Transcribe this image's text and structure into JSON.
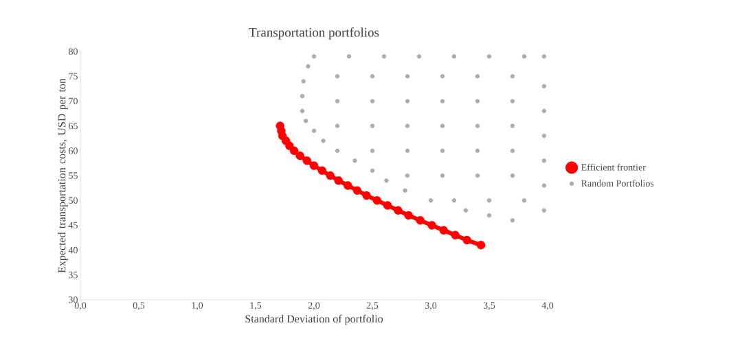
{
  "chart_data": {
    "type": "scatter",
    "title": "Transportation portfolios",
    "xlabel": "Standard Deviation of portfolio",
    "ylabel": "Expected transportation costs, USD per ton",
    "xlim": [
      0,
      4
    ],
    "ylim": [
      30,
      80
    ],
    "xticks": [
      {
        "value": 0,
        "label": "0,0"
      },
      {
        "value": 0.5,
        "label": "0,5"
      },
      {
        "value": 1,
        "label": "1,0"
      },
      {
        "value": 1.5,
        "label": "1,5"
      },
      {
        "value": 2,
        "label": "2,0"
      },
      {
        "value": 2.5,
        "label": "2,5"
      },
      {
        "value": 3,
        "label": "3,0"
      },
      {
        "value": 3.5,
        "label": "3,5"
      },
      {
        "value": 4,
        "label": "4,0"
      }
    ],
    "yticks": [
      30,
      35,
      40,
      45,
      50,
      55,
      60,
      65,
      70,
      75,
      80
    ],
    "grid": false,
    "legend": "right",
    "series": [
      {
        "name": "Efficient frontier",
        "type": "line",
        "marker": "circle",
        "color": "#ff0000",
        "x": [
          1.71,
          1.72,
          1.73,
          1.76,
          1.79,
          1.83,
          1.88,
          1.94,
          2.0,
          2.07,
          2.14,
          2.21,
          2.29,
          2.37,
          2.45,
          2.54,
          2.63,
          2.72,
          2.81,
          2.91,
          3.01,
          3.11,
          3.21,
          3.31,
          3.43
        ],
        "values": [
          65,
          64,
          63,
          62,
          61,
          60,
          59,
          58,
          57,
          56,
          55,
          54,
          53,
          52,
          51,
          50,
          49,
          48,
          47,
          46,
          45,
          44,
          43,
          42,
          41
        ]
      },
      {
        "name": "Random Portfolios",
        "marker": "circle",
        "color": "#afabab",
        "x": [
          2.0,
          1.95,
          1.91,
          1.9,
          1.9,
          1.93,
          2.0,
          2.08,
          2.2,
          2.35,
          2.5,
          2.62,
          2.78,
          3.0,
          3.3,
          3.5,
          3.7,
          3.97,
          3.97,
          3.97,
          3.97,
          3.97,
          3.97,
          3.97,
          2.3,
          2.6,
          2.9,
          3.2,
          3.5,
          3.8,
          2.2,
          2.5,
          2.8,
          3.1,
          3.4,
          3.7,
          2.2,
          2.5,
          2.8,
          3.1,
          3.4,
          3.7,
          2.2,
          2.5,
          2.8,
          3.1,
          3.4,
          3.7,
          2.5,
          2.8,
          3.1,
          3.4,
          3.7,
          2.8,
          3.1,
          3.4,
          3.7,
          3.2,
          3.5,
          3.8
        ],
        "values": [
          79,
          77,
          74,
          71,
          68,
          66,
          64,
          62,
          60,
          58,
          56,
          54,
          52,
          50,
          48,
          47,
          46,
          48,
          53,
          58,
          63,
          68,
          73,
          79,
          79,
          79,
          79,
          79,
          79,
          79,
          75,
          75,
          75,
          75,
          75,
          75,
          70,
          70,
          70,
          70,
          70,
          70,
          65,
          65,
          65,
          65,
          65,
          65,
          60,
          60,
          60,
          60,
          60,
          55,
          55,
          55,
          55,
          50,
          50,
          50
        ]
      }
    ]
  }
}
